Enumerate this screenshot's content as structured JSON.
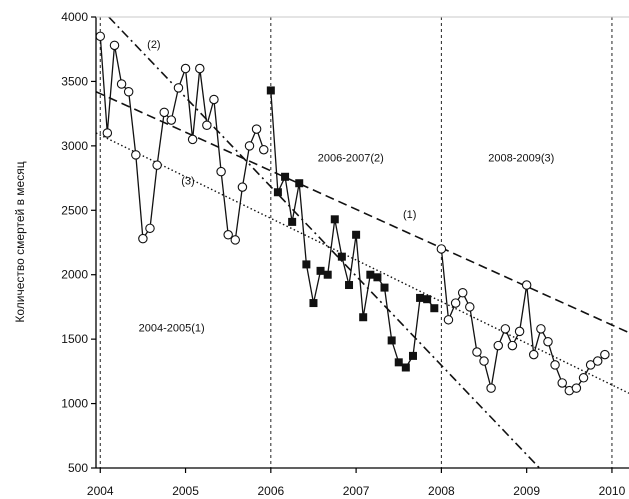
{
  "chart_data": {
    "type": "line",
    "ylabel": "Количество смертей в месяц",
    "xlim": [
      2003.95,
      2010.2
    ],
    "ylim": [
      500,
      4000
    ],
    "xticks": [
      2004,
      2005,
      2006,
      2007,
      2008,
      2009,
      2010
    ],
    "xtick_labels": [
      "2004",
      "2005",
      "2006",
      "2007",
      "2008",
      "2009",
      "2010"
    ],
    "yticks": [
      500,
      1000,
      1500,
      2000,
      2500,
      3000,
      3500,
      4000
    ],
    "ytick_labels": [
      "500",
      "1000",
      "1500",
      "2000",
      "2500",
      "3000",
      "3500",
      "4000"
    ],
    "dividers": [
      2004,
      2006,
      2008,
      2010
    ],
    "period_labels": [
      {
        "text": "2004-2005(1)",
        "x": 2004.45,
        "y": 1560
      },
      {
        "text": "2006-2007(2)",
        "x": 2006.55,
        "y": 2880
      },
      {
        "text": "2008-2009(3)",
        "x": 2008.55,
        "y": 2880
      }
    ],
    "line_labels": [
      {
        "text": "(2)",
        "x": 2004.55,
        "y": 3760
      },
      {
        "text": "(3)",
        "x": 2004.95,
        "y": 2700
      },
      {
        "text": "(1)",
        "x": 2007.55,
        "y": 2440
      }
    ],
    "trend_lines": [
      {
        "name": "(1)",
        "style": "dashed",
        "x": [
          2003.95,
          2010.2
        ],
        "y": [
          3420,
          1550
        ]
      },
      {
        "name": "(2)",
        "style": "dashdot",
        "x": [
          2004.1,
          2009.15
        ],
        "y": [
          4000,
          500
        ]
      },
      {
        "name": "(3)",
        "style": "dotted",
        "x": [
          2003.95,
          2010.2
        ],
        "y": [
          3100,
          1080
        ]
      }
    ],
    "series": [
      {
        "marker": "circle-open",
        "x": [
          2004.0,
          2004.083,
          2004.167,
          2004.25,
          2004.333,
          2004.417,
          2004.5,
          2004.583,
          2004.667,
          2004.75,
          2004.833,
          2004.917,
          2005.0,
          2005.083,
          2005.167,
          2005.25,
          2005.333,
          2005.417,
          2005.5,
          2005.583,
          2005.667,
          2005.75,
          2005.833,
          2005.917
        ],
        "y": [
          3850,
          3100,
          3780,
          3480,
          3420,
          2930,
          2280,
          2360,
          2850,
          3260,
          3200,
          3450,
          3600,
          3050,
          3600,
          3160,
          3360,
          2800,
          2310,
          2270,
          2680,
          3000,
          3130,
          2970
        ]
      },
      {
        "marker": "square-filled",
        "x": [
          2006.0,
          2006.083,
          2006.167,
          2006.25,
          2006.333,
          2006.417,
          2006.5,
          2006.583,
          2006.667,
          2006.75,
          2006.833,
          2006.917,
          2007.0,
          2007.083,
          2007.167,
          2007.25,
          2007.333,
          2007.417,
          2007.5,
          2007.583,
          2007.667,
          2007.75,
          2007.833,
          2007.917
        ],
        "y": [
          3430,
          2640,
          2760,
          2410,
          2710,
          2080,
          1780,
          2030,
          2000,
          2430,
          2140,
          1920,
          2310,
          1670,
          2000,
          1980,
          1900,
          1490,
          1320,
          1280,
          1370,
          1820,
          1810,
          1740
        ]
      },
      {
        "marker": "circle-open",
        "x": [
          2008.0,
          2008.083,
          2008.167,
          2008.25,
          2008.333,
          2008.417,
          2008.5,
          2008.583,
          2008.667,
          2008.75,
          2008.833,
          2008.917,
          2009.0,
          2009.083,
          2009.167,
          2009.25,
          2009.333,
          2009.417,
          2009.5,
          2009.583,
          2009.667,
          2009.75,
          2009.833,
          2009.917
        ],
        "y": [
          2200,
          1650,
          1780,
          1860,
          1750,
          1400,
          1330,
          1120,
          1450,
          1580,
          1450,
          1560,
          1920,
          1380,
          1580,
          1480,
          1300,
          1160,
          1100,
          1120,
          1200,
          1300,
          1330,
          1380
        ]
      }
    ]
  }
}
